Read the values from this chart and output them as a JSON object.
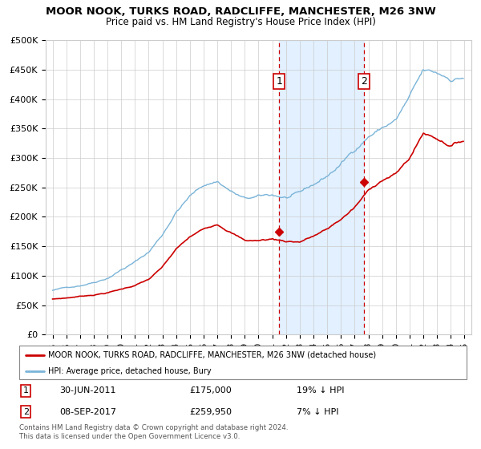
{
  "title": "MOOR NOOK, TURKS ROAD, RADCLIFFE, MANCHESTER, M26 3NW",
  "subtitle": "Price paid vs. HM Land Registry's House Price Index (HPI)",
  "legend_line1": "MOOR NOOK, TURKS ROAD, RADCLIFFE, MANCHESTER, M26 3NW (detached house)",
  "legend_line2": "HPI: Average price, detached house, Bury",
  "footnote": "Contains HM Land Registry data © Crown copyright and database right 2024.\nThis data is licensed under the Open Government Licence v3.0.",
  "point1_date": "30-JUN-2011",
  "point1_price": "£175,000",
  "point1_hpi": "19% ↓ HPI",
  "point2_date": "08-SEP-2017",
  "point2_price": "£259,950",
  "point2_hpi": "7% ↓ HPI",
  "hpi_color": "#7ab4d8",
  "price_color": "#cc0000",
  "shade_color": "#ddeeff",
  "vline_color": "#cc0000",
  "ylim": [
    0,
    500000
  ],
  "yticks": [
    0,
    50000,
    100000,
    150000,
    200000,
    250000,
    300000,
    350000,
    400000,
    450000,
    500000
  ],
  "ytick_labels": [
    "£0",
    "£50K",
    "£100K",
    "£150K",
    "£200K",
    "£250K",
    "£300K",
    "£350K",
    "£400K",
    "£450K",
    "£500K"
  ],
  "point1_x": 2011.5,
  "point1_y": 175000,
  "point2_x": 2017.67,
  "point2_y": 259950,
  "xlim_left": 1994.5,
  "xlim_right": 2025.5,
  "xticks": [
    1995,
    1996,
    1997,
    1998,
    1999,
    2000,
    2001,
    2002,
    2003,
    2004,
    2005,
    2006,
    2007,
    2008,
    2009,
    2010,
    2011,
    2012,
    2013,
    2014,
    2015,
    2016,
    2017,
    2018,
    2019,
    2020,
    2021,
    2022,
    2023,
    2024,
    2025
  ]
}
